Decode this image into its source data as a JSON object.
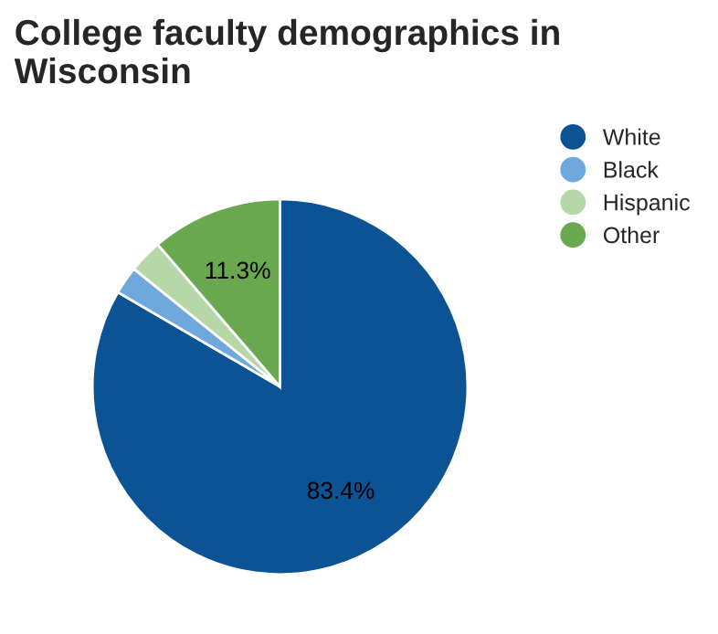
{
  "chart_data": {
    "type": "pie",
    "title": "College faculty demographics in Wisconsin",
    "categories": [
      "White",
      "Black",
      "Hispanic",
      "Other"
    ],
    "values": [
      83.4,
      2.4,
      2.9,
      11.3
    ],
    "value_labels": [
      "83.4%",
      null,
      null,
      "11.3%"
    ],
    "colors": [
      "#0b5394",
      "#6fa8dc",
      "#b6d7a8",
      "#6aa84f"
    ],
    "legend": "top right"
  }
}
